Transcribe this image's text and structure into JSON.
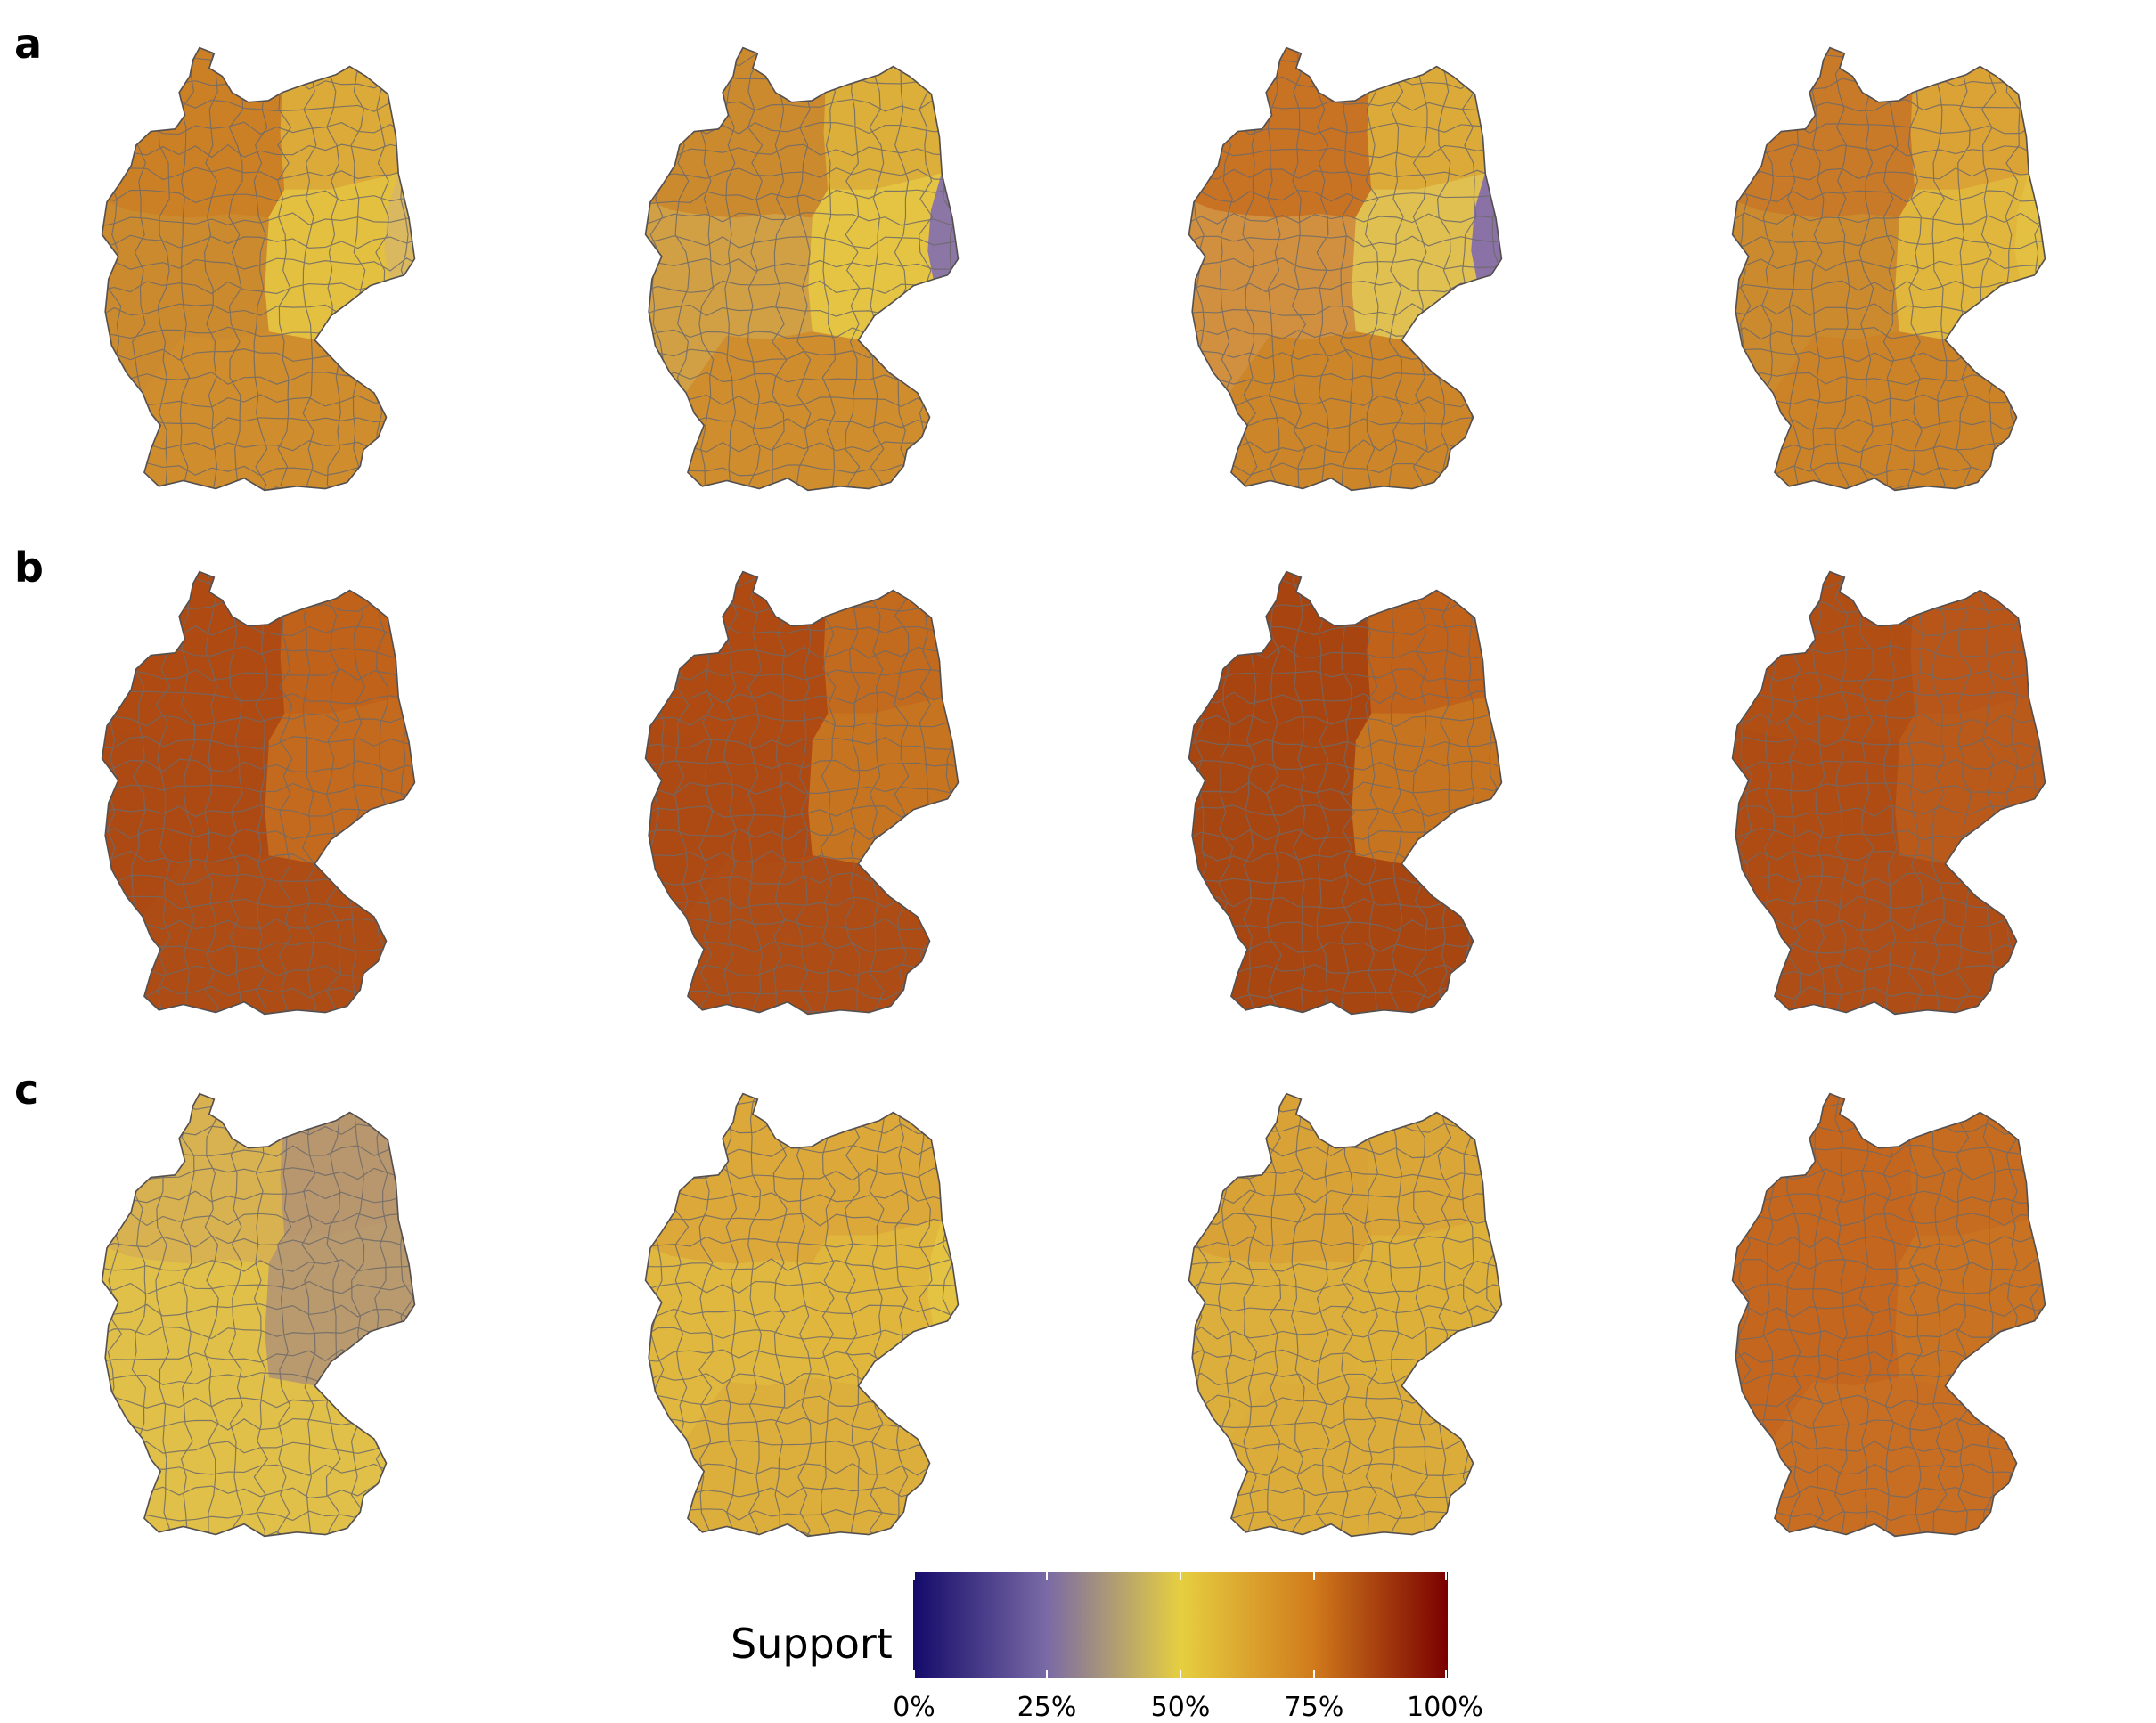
{
  "rows": [
    {
      "label": "a",
      "fill_sets": [
        {
          "north": "#cc8026",
          "northeast": "#dcaa38",
          "east": "#e4c040",
          "west": "#cc8a2e",
          "south": "#cf8d2e",
          "border_east": "#d9b860"
        },
        {
          "north": "#cc8a2e",
          "northeast": "#dcae3a",
          "east": "#e4c442",
          "west": "#d2a044",
          "south": "#cf8d2e",
          "border_east": "#8c76a6"
        },
        {
          "north": "#c87224",
          "northeast": "#dcaa38",
          "east": "#e0c050",
          "west": "#d09040",
          "south": "#cc8528",
          "border_east": "#8a72a6"
        },
        {
          "north": "#c87a28",
          "northeast": "#dba236",
          "east": "#e0b63c",
          "west": "#cc8a2e",
          "south": "#cc8328",
          "border_east": "#e3bf42"
        }
      ]
    },
    {
      "label": "b",
      "fill_sets": [
        {
          "north": "#ae4a12",
          "northeast": "#c0621a",
          "east": "#c46a1e",
          "west": "#ad4a14",
          "south": "#ad4c14",
          "border_east": "#c46a1e"
        },
        {
          "north": "#ae4a12",
          "northeast": "#c26a1e",
          "east": "#c77420",
          "west": "#ad4a14",
          "south": "#ad4c14",
          "border_east": "#c77420"
        },
        {
          "north": "#a8440f",
          "northeast": "#c0621a",
          "east": "#c77420",
          "west": "#a84612",
          "south": "#a84612",
          "border_east": "#c77420"
        },
        {
          "north": "#b04e14",
          "northeast": "#b8561a",
          "east": "#ba5a1a",
          "west": "#ae4c14",
          "south": "#ae4e16",
          "border_east": "#ba5a1a"
        }
      ]
    },
    {
      "label": "c",
      "fill_sets": [
        {
          "north": "#d8b250",
          "northeast": "#b8976e",
          "east": "#b89a6e",
          "west": "#e0c048",
          "south": "#e0c048",
          "border_east": "#b89a6e"
        },
        {
          "north": "#dca83a",
          "northeast": "#dca83a",
          "east": "#e0b63c",
          "west": "#e0b840",
          "south": "#dcae3c",
          "border_east": "#e4c242"
        },
        {
          "north": "#d8a236",
          "northeast": "#dba638",
          "east": "#ddb03a",
          "west": "#dcae3c",
          "south": "#dcac3a",
          "border_east": "#ddb03a"
        },
        {
          "north": "#c4661e",
          "northeast": "#c66c20",
          "east": "#c87222",
          "west": "#c4661e",
          "south": "#c86e22",
          "border_east": "#c87222"
        }
      ]
    }
  ],
  "legend": {
    "title": "Support",
    "labels": [
      "0%",
      "25%",
      "50%",
      "75%",
      "100%"
    ],
    "colors": [
      "#140a6a",
      "#7a6aa6",
      "#e6cf40",
      "#d07a1c",
      "#7a0000"
    ]
  }
}
